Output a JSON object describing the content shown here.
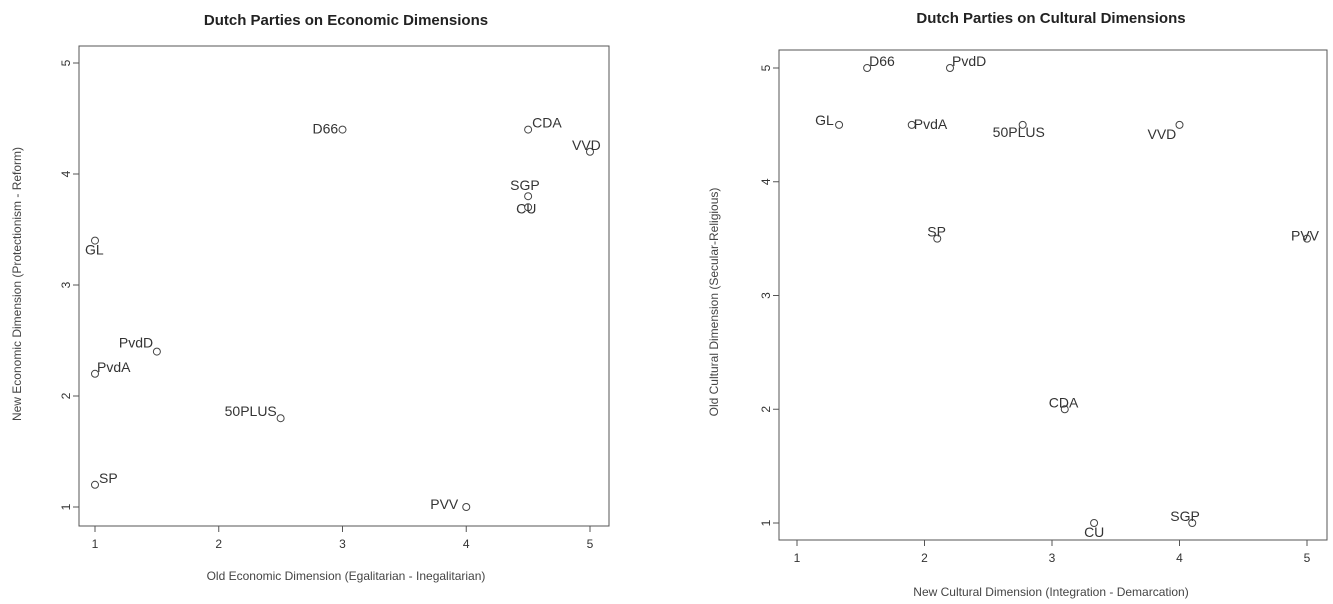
{
  "chart_data": [
    {
      "type": "scatter",
      "title": "Dutch Parties on Economic Dimensions",
      "xlabel": "Old Economic Dimension (Egalitarian - Inegalitarian)",
      "ylabel": "New Economic Dimension (Protectionism - Reform)",
      "xlim": [
        1,
        5
      ],
      "ylim": [
        1,
        5
      ],
      "xticks": [
        "1",
        "2",
        "3",
        "4",
        "5"
      ],
      "yticks": [
        "1",
        "2",
        "3",
        "4",
        "5"
      ],
      "grid": false,
      "points": [
        {
          "label": "D66",
          "x": 3.0,
          "y": 4.4
        },
        {
          "label": "CDA",
          "x": 4.5,
          "y": 4.4
        },
        {
          "label": "VVD",
          "x": 5.0,
          "y": 4.2
        },
        {
          "label": "SGP",
          "x": 4.5,
          "y": 3.8
        },
        {
          "label": "CU",
          "x": 4.5,
          "y": 3.7
        },
        {
          "label": "GL",
          "x": 1.0,
          "y": 3.4
        },
        {
          "label": "PvdD",
          "x": 1.5,
          "y": 2.4
        },
        {
          "label": "PvdA",
          "x": 1.0,
          "y": 2.2
        },
        {
          "label": "50PLUS",
          "x": 2.5,
          "y": 1.8
        },
        {
          "label": "SP",
          "x": 1.0,
          "y": 1.2
        },
        {
          "label": "PVV",
          "x": 4.0,
          "y": 1.0
        }
      ]
    },
    {
      "type": "scatter",
      "title": "Dutch Parties on Cultural Dimensions",
      "xlabel": "New Cultural Dimension (Integration - Demarcation)",
      "ylabel": "Old Cultural Dimension (Secular-Religious)",
      "xlim": [
        1,
        5
      ],
      "ylim": [
        1,
        5
      ],
      "xticks": [
        "1",
        "2",
        "3",
        "4",
        "5"
      ],
      "yticks": [
        "1",
        "2",
        "3",
        "4",
        "5"
      ],
      "grid": false,
      "points": [
        {
          "label": "D66",
          "x": 1.55,
          "y": 5.0
        },
        {
          "label": "PvdD",
          "x": 2.2,
          "y": 5.0
        },
        {
          "label": "GL",
          "x": 1.33,
          "y": 4.5
        },
        {
          "label": "PvdA",
          "x": 1.9,
          "y": 4.5
        },
        {
          "label": "50PLUS",
          "x": 2.77,
          "y": 4.5
        },
        {
          "label": "VVD",
          "x": 4.0,
          "y": 4.5
        },
        {
          "label": "SP",
          "x": 2.1,
          "y": 3.5
        },
        {
          "label": "PVV",
          "x": 5.0,
          "y": 3.5
        },
        {
          "label": "CDA",
          "x": 3.1,
          "y": 2.0
        },
        {
          "label": "SGP",
          "x": 4.1,
          "y": 1.0
        },
        {
          "label": "CU",
          "x": 3.33,
          "y": 1.0
        }
      ]
    }
  ]
}
